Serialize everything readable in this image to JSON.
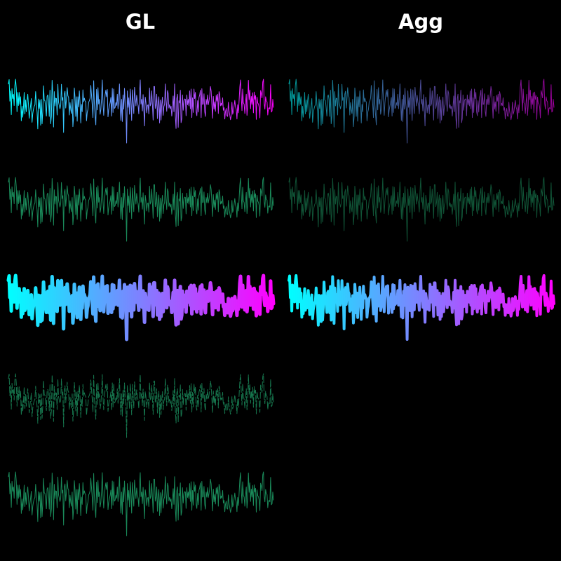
{
  "columns": {
    "left_title": "GL",
    "right_title": "Agg"
  },
  "chart_data": {
    "type": "line",
    "title": "",
    "xlabel": "",
    "ylabel": "",
    "grid": false,
    "legend": "none",
    "background": "#000000",
    "color_gradient": [
      "#00ffff",
      "#ff00ff"
    ],
    "green_color": "#1a8a5a",
    "y": [
      0.62,
      0.74,
      0.15,
      0.43,
      -0.22,
      0.49,
      0.22,
      0.34,
      0.03,
      0.58,
      0.75,
      0.49,
      -0.14,
      0.39,
      0.03,
      0.39,
      0.06,
      0.27,
      -0.39,
      0.01,
      -0.29,
      -0.02,
      0.39,
      -0.2,
      0.18,
      -0.14,
      0.15,
      0.34,
      0.05,
      -0.32,
      -0.13,
      0.04,
      0.22,
      -0.43,
      -0.19,
      -0.07,
      0.01,
      0.05,
      0.41,
      0.08,
      -0.14,
      -0.61,
      0.21,
      -0.05,
      0.18,
      -0.51,
      0.2,
      -0.47,
      -0.12,
      0.57,
      0.18,
      0.16,
      -0.04,
      -0.26,
      0.28,
      0.32,
      0.19,
      -0.27,
      0.45,
      -0.47,
      -0.26,
      0.72,
      0.33,
      -0.56,
      0.41,
      0.02,
      0.23,
      0.22,
      -0.23,
      0.61,
      0.12,
      0.03,
      -0.06,
      0.04,
      0.61,
      0.17,
      0.25,
      -0.71,
      0.34,
      0.42,
      -0.04,
      0.2,
      0.52,
      0.3,
      0.25,
      -0.23,
      0.11,
      -0.08,
      -0.19,
      0.2,
      -0.55,
      -0.27,
      0.51,
      0.24,
      -0.27,
      0.27,
      -0.4,
      0.27,
      -0.01,
      0.43,
      0.1,
      -0.45,
      0.06,
      -0.14,
      0.46,
      0.13,
      0.23,
      0.15,
      0.13,
      -0.39,
      -0.16,
      -0.08,
      0.12,
      0.16,
      0.23,
      0.58,
      0.31,
      0.04,
      -0.3,
      0.71,
      0.06,
      -0.25,
      -0.5,
      0.47,
      -0.09,
      0.52,
      0.07,
      0.2,
      -0.21,
      -0.08,
      0.21,
      0.73,
      0.11,
      -0.24,
      0.1,
      0.32,
      0.45,
      0.27,
      0.47,
      -0.28,
      -0.09,
      0.02,
      0.11,
      0.25,
      -0.26,
      0.5,
      -0.16,
      0.48,
      -0.05,
      -0.02,
      0.11,
      0.03,
      0.34,
      -0.06,
      0.21,
      0.62,
      0.03,
      -0.38,
      0.2,
      -0.41,
      0.32,
      -0.07,
      0.5,
      0.09,
      -0.1,
      -1.0,
      0.43,
      -0.02,
      0.24,
      -0.21,
      0.48,
      0.15,
      -0.38,
      0.46,
      0.12,
      -0.19,
      0.53,
      0.26,
      0.02,
      0.31,
      0.13,
      0.03,
      -0.2,
      0.37,
      0.73,
      0.07,
      0.2,
      -0.12,
      0.33,
      -0.08,
      -0.53,
      0.26,
      0.11,
      -0.17,
      0.03,
      0.05,
      -0.2,
      0.51,
      0.02,
      0.08,
      0.43,
      0.06,
      -0.37,
      0.55,
      0.55,
      -0.05,
      0.06,
      0.34,
      -0.33,
      0.1,
      0.27,
      -0.45,
      0.18,
      -0.37,
      0.06,
      0.26,
      -0.24,
      0.0,
      0.06,
      0.62,
      0.16,
      -0.13,
      0.44,
      0.36,
      -0.04,
      0.05,
      -0.06,
      0.01,
      -0.26,
      -0.03,
      0.29,
      -0.14,
      0.62,
      -0.27,
      -0.6,
      0.22,
      0.34,
      -0.57,
      0.16,
      0.1,
      0.45,
      -0.44,
      -0.33,
      0.32,
      -0.1,
      0.16,
      0.21,
      0.2,
      -0.25,
      0.32,
      0.05,
      0.2,
      0.02,
      0.43,
      -0.06,
      0.48,
      -0.3,
      0.24,
      -0.16,
      0.48,
      0.22,
      0.39,
      -0.14,
      -0.25,
      0.16,
      -0.15,
      0.25,
      0.32,
      0.45,
      -0.3,
      0.49,
      0.06,
      0.07,
      0.35,
      -0.13,
      -0.27,
      0.2,
      0.06,
      0.32,
      0.05,
      0.16,
      0.3,
      0.55,
      0.42,
      0.05,
      -0.32,
      0.28,
      -0.07,
      0.13,
      -0.13,
      0.31,
      0.15,
      0.34,
      -0.19,
      0.41,
      0.33,
      0.02,
      0.09,
      0.03,
      0.24,
      -0.1,
      -0.03,
      -0.34,
      -0.14,
      -0.05,
      -0.25,
      -0.27,
      0.12,
      -0.12,
      -0.23,
      -0.36,
      -0.25,
      0.12,
      -0.21,
      -0.14,
      0.01,
      0.17,
      -0.01,
      -0.07,
      -0.34,
      0.05,
      -0.17,
      0.16,
      0.54,
      0.73,
      0.27,
      -0.11,
      0.48,
      0.11,
      0.06,
      -0.19,
      0.11,
      0.34,
      -0.24,
      0.02,
      0.72,
      0.19,
      0.45,
      -0.06,
      0.28,
      0.06,
      0.38,
      -0.17,
      0.4,
      0.2,
      0.3,
      -0.35,
      0.26,
      0.1,
      0.07,
      -0.02,
      -0.31,
      0.44,
      0.36,
      0.24,
      0.67,
      0.75,
      0.09,
      -0.07,
      0.27,
      0.16,
      0.13,
      -0.23,
      -0.05,
      -0.03,
      -0.07,
      0.6,
      -0.15,
      -0.12,
      0.2,
      -0.02
    ],
    "panels": [
      {
        "column": "GL",
        "row": 0,
        "style": "gradient",
        "width": 1
      },
      {
        "column": "Agg",
        "row": 0,
        "style": "gradient-dim",
        "width": 1
      },
      {
        "column": "GL",
        "row": 1,
        "style": "green",
        "width": 1
      },
      {
        "column": "Agg",
        "row": 1,
        "style": "green-dim",
        "width": 1
      },
      {
        "column": "GL",
        "row": 2,
        "style": "gradient",
        "width": 5
      },
      {
        "column": "Agg",
        "row": 2,
        "style": "gradient",
        "width": 4
      },
      {
        "column": "GL",
        "row": 3,
        "style": "green-dashed",
        "width": 1
      },
      {
        "column": "GL",
        "row": 4,
        "style": "green",
        "width": 1
      }
    ]
  }
}
